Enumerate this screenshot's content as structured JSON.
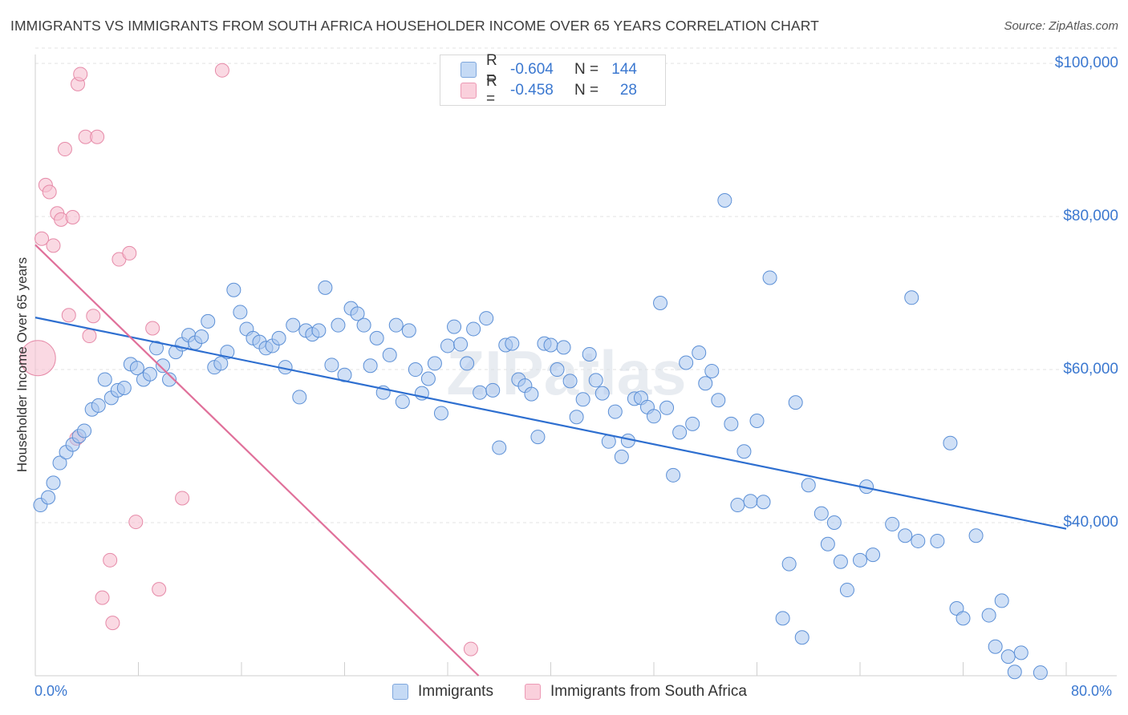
{
  "header": {
    "title": "IMMIGRANTS VS IMMIGRANTS FROM SOUTH AFRICA HOUSEHOLDER INCOME OVER 65 YEARS CORRELATION CHART",
    "source": "Source: ZipAtlas.com"
  },
  "watermark": "ZIPatlas",
  "legend_top": {
    "rows": [
      {
        "r_label": "R =",
        "r_value": "-0.604",
        "n_label": "N =",
        "n_value": "144",
        "color": "#a9c7ee"
      },
      {
        "r_label": "R =",
        "r_value": "-0.458",
        "n_label": "N =",
        "n_value": "28",
        "color": "#f5b8cb"
      }
    ]
  },
  "legend_bottom": {
    "items": [
      {
        "label": "Immigrants",
        "color": "#a9c7ee"
      },
      {
        "label": "Immigrants from South Africa",
        "color": "#f5b8cb"
      }
    ]
  },
  "colors": {
    "blue_fill": "#a9c7ee",
    "blue_stroke": "#5b8fd6",
    "blue_line": "#2e6fd0",
    "pink_fill": "#f7bfd0",
    "pink_stroke": "#e68aa8",
    "pink_line": "#e0709a",
    "axis_text": "#3b78d0",
    "grid": "#e3e3e3"
  },
  "chart_data": {
    "type": "scatter",
    "title": "IMMIGRANTS VS IMMIGRANTS FROM SOUTH AFRICA HOUSEHOLDER INCOME OVER 65 YEARS CORRELATION CHART",
    "xlabel": "",
    "ylabel": "Householder Income Over 65 years",
    "x_unit": "%",
    "xlim": [
      0,
      80
    ],
    "ylim": [
      20000,
      102000
    ],
    "x_tick_labels": [
      "0.0%",
      "80.0%"
    ],
    "y_ticks": [
      40000,
      60000,
      80000,
      100000
    ],
    "y_tick_labels": [
      "$40,000",
      "$60,000",
      "$80,000",
      "$100,000"
    ],
    "grid": true,
    "legend_position": "top-center",
    "series": [
      {
        "name": "Immigrants",
        "r": -0.604,
        "n": 144,
        "trend": {
          "x": [
            0,
            80
          ],
          "y": [
            66800,
            39200
          ]
        },
        "points": [
          [
            0.4,
            42300
          ],
          [
            1.0,
            43300
          ],
          [
            1.4,
            45200
          ],
          [
            1.9,
            47800
          ],
          [
            2.4,
            49200
          ],
          [
            2.9,
            50200
          ],
          [
            3.4,
            51300
          ],
          [
            3.8,
            52000
          ],
          [
            4.4,
            54800
          ],
          [
            4.9,
            55300
          ],
          [
            5.4,
            58700
          ],
          [
            5.9,
            56300
          ],
          [
            6.4,
            57300
          ],
          [
            6.9,
            57600
          ],
          [
            7.4,
            60700
          ],
          [
            7.9,
            60200
          ],
          [
            8.4,
            58700
          ],
          [
            8.9,
            59400
          ],
          [
            9.4,
            62800
          ],
          [
            9.9,
            60500
          ],
          [
            10.4,
            58700
          ],
          [
            10.9,
            62300
          ],
          [
            11.4,
            63300
          ],
          [
            11.9,
            64500
          ],
          [
            12.4,
            63500
          ],
          [
            12.9,
            64300
          ],
          [
            13.4,
            66300
          ],
          [
            13.9,
            60300
          ],
          [
            14.4,
            60800
          ],
          [
            14.9,
            62300
          ],
          [
            15.4,
            70400
          ],
          [
            15.9,
            67500
          ],
          [
            16.4,
            65300
          ],
          [
            16.9,
            64100
          ],
          [
            17.4,
            63600
          ],
          [
            17.9,
            62800
          ],
          [
            18.4,
            63100
          ],
          [
            18.9,
            64100
          ],
          [
            19.4,
            60300
          ],
          [
            20.0,
            65800
          ],
          [
            20.5,
            56400
          ],
          [
            21.0,
            65100
          ],
          [
            21.5,
            64600
          ],
          [
            22.0,
            65100
          ],
          [
            22.5,
            70700
          ],
          [
            23.0,
            60600
          ],
          [
            23.5,
            65800
          ],
          [
            24.0,
            59300
          ],
          [
            24.5,
            68000
          ],
          [
            25.0,
            67300
          ],
          [
            25.5,
            65800
          ],
          [
            26.0,
            60500
          ],
          [
            26.5,
            64100
          ],
          [
            27.0,
            57000
          ],
          [
            27.5,
            61900
          ],
          [
            28.0,
            65800
          ],
          [
            28.5,
            55800
          ],
          [
            29.0,
            65100
          ],
          [
            29.5,
            60000
          ],
          [
            30.0,
            56900
          ],
          [
            30.5,
            58800
          ],
          [
            31.0,
            60800
          ],
          [
            31.5,
            54300
          ],
          [
            32.0,
            63100
          ],
          [
            32.5,
            65600
          ],
          [
            33.0,
            63300
          ],
          [
            33.5,
            60800
          ],
          [
            34.0,
            65300
          ],
          [
            34.5,
            57000
          ],
          [
            35.0,
            66700
          ],
          [
            35.5,
            57300
          ],
          [
            36.0,
            49800
          ],
          [
            36.5,
            63200
          ],
          [
            37.0,
            63400
          ],
          [
            37.5,
            58700
          ],
          [
            38.0,
            57900
          ],
          [
            38.5,
            56800
          ],
          [
            39.0,
            51200
          ],
          [
            39.5,
            63400
          ],
          [
            40.0,
            63200
          ],
          [
            40.5,
            60000
          ],
          [
            41.0,
            62900
          ],
          [
            41.5,
            58500
          ],
          [
            42.0,
            53800
          ],
          [
            42.5,
            56100
          ],
          [
            43.0,
            62000
          ],
          [
            43.5,
            58600
          ],
          [
            44.0,
            56900
          ],
          [
            44.5,
            50600
          ],
          [
            45.0,
            54500
          ],
          [
            45.5,
            48600
          ],
          [
            46.0,
            50700
          ],
          [
            46.5,
            56200
          ],
          [
            47.0,
            56300
          ],
          [
            47.5,
            55100
          ],
          [
            48.0,
            53900
          ],
          [
            48.5,
            68700
          ],
          [
            49.0,
            55000
          ],
          [
            49.5,
            46200
          ],
          [
            50.0,
            51800
          ],
          [
            50.5,
            60900
          ],
          [
            51.0,
            52900
          ],
          [
            51.5,
            62200
          ],
          [
            52.0,
            58200
          ],
          [
            52.5,
            59800
          ],
          [
            53.0,
            56000
          ],
          [
            53.5,
            82100
          ],
          [
            54.0,
            52900
          ],
          [
            54.5,
            42300
          ],
          [
            55.0,
            49300
          ],
          [
            55.5,
            42800
          ],
          [
            56.0,
            53300
          ],
          [
            56.5,
            42700
          ],
          [
            57.0,
            72000
          ],
          [
            58.0,
            27500
          ],
          [
            58.5,
            34600
          ],
          [
            59.0,
            55700
          ],
          [
            59.5,
            25000
          ],
          [
            60.0,
            44900
          ],
          [
            61.0,
            41200
          ],
          [
            61.5,
            37200
          ],
          [
            62.0,
            40000
          ],
          [
            62.5,
            34900
          ],
          [
            63.0,
            31200
          ],
          [
            64.0,
            35100
          ],
          [
            64.5,
            44700
          ],
          [
            65.0,
            35800
          ],
          [
            66.5,
            39800
          ],
          [
            67.5,
            38300
          ],
          [
            68.0,
            69400
          ],
          [
            68.5,
            37600
          ],
          [
            70.0,
            37600
          ],
          [
            71.0,
            50400
          ],
          [
            71.5,
            28800
          ],
          [
            72.0,
            27500
          ],
          [
            73.0,
            38300
          ],
          [
            74.0,
            27900
          ],
          [
            74.5,
            23800
          ],
          [
            75.0,
            29800
          ],
          [
            75.5,
            22500
          ],
          [
            76.0,
            20500
          ],
          [
            76.5,
            23000
          ],
          [
            78.0,
            20400
          ]
        ]
      },
      {
        "name": "Immigrants from South Africa",
        "r": -0.458,
        "n": 28,
        "trend": {
          "x": [
            0,
            34.4
          ],
          "y": [
            76300,
            20000
          ]
        },
        "points": [
          [
            0.2,
            61500,
            "large"
          ],
          [
            0.5,
            77100
          ],
          [
            0.8,
            84100
          ],
          [
            1.1,
            83200
          ],
          [
            1.4,
            76200
          ],
          [
            1.7,
            80400
          ],
          [
            2.0,
            79600
          ],
          [
            2.3,
            88800
          ],
          [
            2.6,
            67100
          ],
          [
            2.9,
            79900
          ],
          [
            3.2,
            51000
          ],
          [
            3.3,
            97300
          ],
          [
            3.5,
            98600
          ],
          [
            3.9,
            90400
          ],
          [
            4.2,
            64400
          ],
          [
            4.5,
            67000
          ],
          [
            4.8,
            90400
          ],
          [
            5.2,
            30200
          ],
          [
            5.8,
            35100
          ],
          [
            6.0,
            26900
          ],
          [
            6.5,
            74400
          ],
          [
            7.3,
            75200
          ],
          [
            7.8,
            40100
          ],
          [
            9.1,
            65400
          ],
          [
            9.6,
            31300
          ],
          [
            11.4,
            43200
          ],
          [
            14.5,
            99100
          ],
          [
            33.8,
            23500
          ]
        ]
      }
    ]
  }
}
